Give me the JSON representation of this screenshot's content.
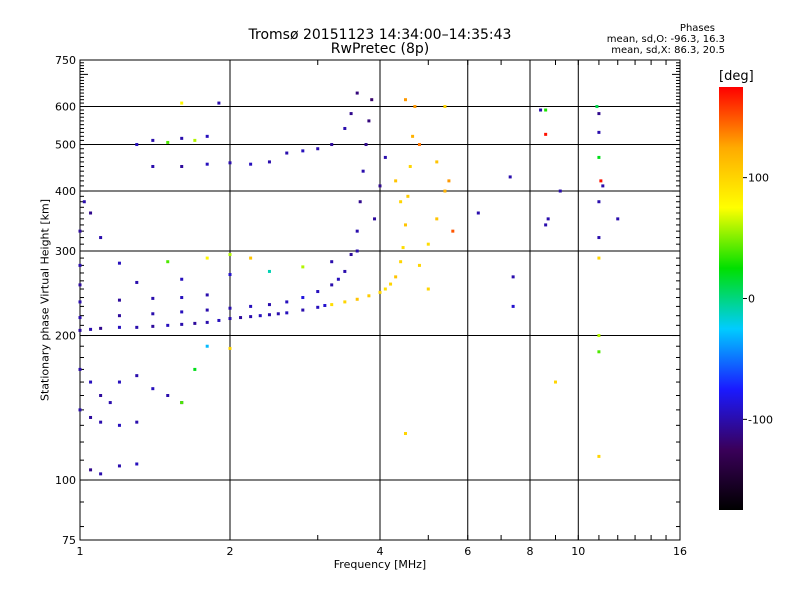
{
  "title_line1": "Tromsø 20151123 14:34:00–14:35:43",
  "title_line2": "RwPretec (8p)",
  "stats": {
    "heading": "Phases",
    "line_o": "mean, sd,O: -96.3, 16.3",
    "line_x": "mean, sd,X:  86.3, 20.5"
  },
  "colorbar": {
    "unit": "[deg]",
    "ticks": [
      "100",
      "0",
      "-100"
    ],
    "tick_values": [
      100,
      0,
      -100
    ],
    "range": [
      -175,
      175
    ],
    "palette": [
      "#000000",
      "#3a005a",
      "#1a1aff",
      "#00ccff",
      "#00e000",
      "#ffff00",
      "#ffaa00",
      "#ff0000"
    ]
  },
  "chart_data": {
    "type": "scatter",
    "title": "Tromsø 20151123 14:34:00–14:35:43",
    "subtitle": "RwPretec (8p)",
    "xlabel": "Frequency [MHz]",
    "ylabel": "Stationary phase Virtual Height [km]",
    "xscale": "log",
    "yscale": "log",
    "xlim": [
      1,
      16
    ],
    "ylim": [
      75,
      750
    ],
    "x_ticks": [
      1,
      2,
      4,
      6,
      8,
      10,
      16
    ],
    "x_tick_labels": [
      "1",
      "2",
      "4",
      "6",
      "8",
      "10",
      "16"
    ],
    "y_ticks": [
      75,
      100,
      200,
      300,
      400,
      500,
      600,
      750
    ],
    "y_tick_labels": [
      "75",
      "100",
      "200",
      "300",
      "400",
      "500",
      "600",
      "750"
    ],
    "grid_x": [
      1,
      2,
      4,
      6,
      8,
      10,
      16
    ],
    "grid_y": [
      100,
      200,
      300,
      400,
      500,
      600
    ],
    "color_encoding": "phase [deg]",
    "series": [
      {
        "points": [
          [
            1.0,
            205,
            -105
          ],
          [
            1.05,
            206,
            -100
          ],
          [
            1.1,
            207,
            -110
          ],
          [
            1.2,
            208,
            -95
          ],
          [
            1.3,
            208,
            -100
          ],
          [
            1.4,
            209,
            -105
          ],
          [
            1.5,
            210,
            -95
          ],
          [
            1.6,
            211,
            -100
          ],
          [
            1.7,
            212,
            -105
          ],
          [
            1.8,
            213,
            -100
          ],
          [
            1.9,
            215,
            -95
          ],
          [
            2.0,
            217,
            -100
          ],
          [
            2.1,
            218,
            -105
          ],
          [
            2.2,
            219,
            -100
          ],
          [
            2.3,
            220,
            -95
          ],
          [
            2.4,
            221,
            -100
          ],
          [
            2.5,
            222,
            -100
          ],
          [
            2.6,
            223,
            -95
          ],
          [
            2.8,
            226,
            -100
          ],
          [
            3.0,
            229,
            -95
          ],
          [
            3.1,
            231,
            -90
          ],
          [
            3.2,
            232,
            95
          ],
          [
            3.4,
            235,
            100
          ],
          [
            3.6,
            238,
            110
          ],
          [
            3.8,
            242,
            105
          ],
          [
            4.0,
            246,
            100
          ],
          [
            4.1,
            250,
            95
          ],
          [
            4.2,
            256,
            100
          ],
          [
            4.3,
            265,
            110
          ],
          [
            4.4,
            285,
            100
          ],
          [
            4.45,
            305,
            95
          ],
          [
            4.5,
            340,
            110
          ],
          [
            4.55,
            390,
            105
          ],
          [
            4.6,
            450,
            100
          ],
          [
            4.65,
            520,
            120
          ],
          [
            4.7,
            600,
            130
          ],
          [
            1.0,
            218,
            -100
          ],
          [
            1.2,
            220,
            -105
          ],
          [
            1.4,
            222,
            -100
          ],
          [
            1.6,
            224,
            -95
          ],
          [
            1.8,
            226,
            -100
          ],
          [
            2.0,
            228,
            -100
          ],
          [
            2.2,
            230,
            -95
          ],
          [
            2.4,
            232,
            -100
          ],
          [
            2.6,
            235,
            -95
          ],
          [
            2.8,
            240,
            -85
          ],
          [
            3.0,
            247,
            -95
          ],
          [
            3.2,
            255,
            -100
          ],
          [
            3.3,
            262,
            -95
          ],
          [
            3.4,
            272,
            -100
          ],
          [
            3.5,
            295,
            -105
          ],
          [
            3.6,
            330,
            -100
          ],
          [
            3.65,
            380,
            -110
          ],
          [
            3.7,
            440,
            -100
          ],
          [
            3.75,
            500,
            -110
          ],
          [
            3.8,
            560,
            -115
          ],
          [
            3.85,
            620,
            -120
          ],
          [
            1.0,
            235,
            -100
          ],
          [
            1.2,
            237,
            -105
          ],
          [
            1.4,
            239,
            -100
          ],
          [
            1.6,
            240,
            -95
          ],
          [
            1.8,
            243,
            -100
          ],
          [
            1.0,
            255,
            -105
          ],
          [
            1.3,
            258,
            -100
          ],
          [
            1.6,
            262,
            -95
          ],
          [
            2.0,
            268,
            -90
          ],
          [
            2.4,
            272,
            -10
          ],
          [
            2.8,
            278,
            60
          ],
          [
            3.2,
            285,
            -100
          ],
          [
            3.6,
            300,
            -100
          ],
          [
            3.9,
            350,
            -105
          ],
          [
            4.0,
            410,
            -110
          ],
          [
            4.1,
            470,
            -100
          ],
          [
            1.0,
            280,
            -100
          ],
          [
            1.2,
            283,
            -95
          ],
          [
            1.5,
            285,
            40
          ],
          [
            1.8,
            290,
            80
          ],
          [
            2.0,
            295,
            60
          ],
          [
            2.2,
            290,
            110
          ],
          [
            1.0,
            330,
            -105
          ],
          [
            1.1,
            320,
            -100
          ],
          [
            1.05,
            360,
            -110
          ],
          [
            1.02,
            380,
            -100
          ],
          [
            1.0,
            170,
            -100
          ],
          [
            1.05,
            160,
            -95
          ],
          [
            1.1,
            150,
            -105
          ],
          [
            1.15,
            145,
            -100
          ],
          [
            1.2,
            160,
            -95
          ],
          [
            1.3,
            165,
            -100
          ],
          [
            1.4,
            155,
            -95
          ],
          [
            1.5,
            150,
            -100
          ],
          [
            1.6,
            145,
            -105
          ],
          [
            1.0,
            140,
            -100
          ],
          [
            1.05,
            135,
            -105
          ],
          [
            1.1,
            132,
            -100
          ],
          [
            1.2,
            130,
            -95
          ],
          [
            1.3,
            132,
            -100
          ],
          [
            1.6,
            145,
            40
          ],
          [
            1.7,
            170,
            20
          ],
          [
            1.8,
            190,
            -30
          ],
          [
            2.0,
            188,
            100
          ],
          [
            1.05,
            105,
            -110
          ],
          [
            1.1,
            103,
            -100
          ],
          [
            1.2,
            107,
            -100
          ],
          [
            1.3,
            108,
            -95
          ],
          [
            1.4,
            450,
            -100
          ],
          [
            1.6,
            450,
            -105
          ],
          [
            1.8,
            455,
            -95
          ],
          [
            2.0,
            458,
            -100
          ],
          [
            2.2,
            455,
            -95
          ],
          [
            2.4,
            460,
            -100
          ],
          [
            2.6,
            480,
            -100
          ],
          [
            2.8,
            485,
            -95
          ],
          [
            3.0,
            490,
            -100
          ],
          [
            3.2,
            500,
            -105
          ],
          [
            3.4,
            540,
            -100
          ],
          [
            3.5,
            580,
            -110
          ],
          [
            3.6,
            640,
            -115
          ],
          [
            1.3,
            500,
            -95
          ],
          [
            1.4,
            510,
            -100
          ],
          [
            1.5,
            505,
            40
          ],
          [
            1.6,
            515,
            -100
          ],
          [
            1.7,
            510,
            60
          ],
          [
            1.8,
            520,
            -95
          ],
          [
            1.9,
            610,
            -100
          ],
          [
            1.6,
            610,
            80
          ],
          [
            4.3,
            420,
            110
          ],
          [
            4.4,
            380,
            100
          ],
          [
            4.5,
            620,
            130
          ],
          [
            4.8,
            500,
            140
          ],
          [
            4.8,
            280,
            100
          ],
          [
            5.0,
            310,
            95
          ],
          [
            5.2,
            350,
            110
          ],
          [
            5.4,
            400,
            120
          ],
          [
            5.5,
            420,
            130
          ],
          [
            5.6,
            330,
            150
          ],
          [
            5.4,
            600,
            100
          ],
          [
            5.2,
            460,
            110
          ],
          [
            5.0,
            250,
            100
          ],
          [
            6.3,
            360,
            -100
          ],
          [
            7.3,
            428,
            -100
          ],
          [
            7.4,
            265,
            -100
          ],
          [
            7.4,
            230,
            -90
          ],
          [
            8.6,
            590,
            30
          ],
          [
            8.6,
            525,
            170
          ],
          [
            8.6,
            340,
            -100
          ],
          [
            8.7,
            350,
            -100
          ],
          [
            9.0,
            160,
            100
          ],
          [
            11.0,
            380,
            -100
          ],
          [
            11.0,
            580,
            -110
          ],
          [
            11.0,
            320,
            -100
          ],
          [
            11.1,
            420,
            170
          ],
          [
            11.2,
            410,
            -100
          ],
          [
            12.0,
            350,
            -100
          ],
          [
            11.0,
            200,
            60
          ],
          [
            11.0,
            185,
            40
          ],
          [
            11.0,
            112,
            100
          ],
          [
            4.5,
            125,
            100
          ],
          [
            9.2,
            400,
            -100
          ],
          [
            8.4,
            590,
            -100
          ],
          [
            10.9,
            600,
            10
          ],
          [
            11.0,
            530,
            -100
          ],
          [
            11.0,
            470,
            20
          ],
          [
            11.0,
            290,
            100
          ]
        ]
      }
    ]
  }
}
